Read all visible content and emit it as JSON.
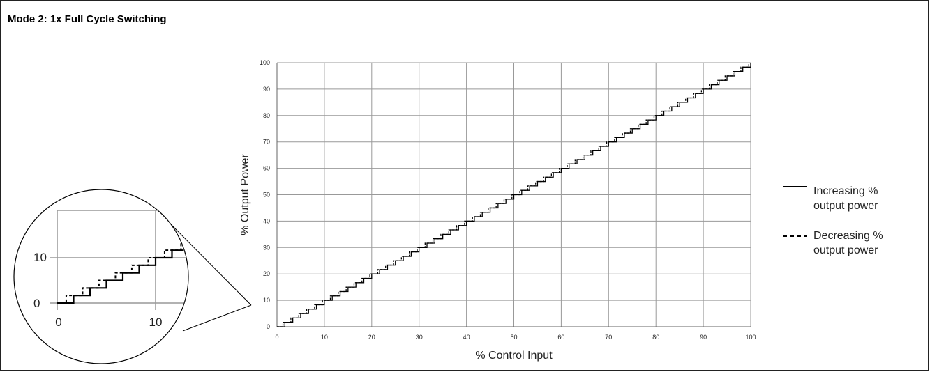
{
  "title": "Mode 2: 1x Full Cycle Switching",
  "chart_data": {
    "type": "line",
    "xlabel": "% Control Input",
    "ylabel": "% Output Power",
    "xlim": [
      0,
      100
    ],
    "ylim": [
      0,
      100
    ],
    "x_ticks": [
      "0",
      "10",
      "20",
      "30",
      "40",
      "50",
      "60",
      "70",
      "80",
      "90",
      "100"
    ],
    "y_ticks": [
      "0",
      "10",
      "20",
      "30",
      "40",
      "50",
      "60",
      "70",
      "80",
      "90",
      "100"
    ],
    "grid": true,
    "legend_position": "right",
    "series": [
      {
        "name": "Increasing % output power",
        "style": "solid",
        "step": 1.6667,
        "description_steps": 60
      },
      {
        "name": "Decreasing % output power",
        "style": "dashed",
        "step": 1.6667,
        "offset": -1
      }
    ],
    "inset": {
      "x_ticks": [
        "0",
        "10"
      ],
      "y_ticks": [
        "0",
        "10"
      ],
      "xlim": [
        0,
        13
      ],
      "ylim": [
        0,
        15
      ]
    }
  },
  "legend": {
    "items": [
      {
        "line1": "Increasing %",
        "line2": "output power"
      },
      {
        "line1": "Decreasing %",
        "line2": "output power"
      }
    ]
  }
}
